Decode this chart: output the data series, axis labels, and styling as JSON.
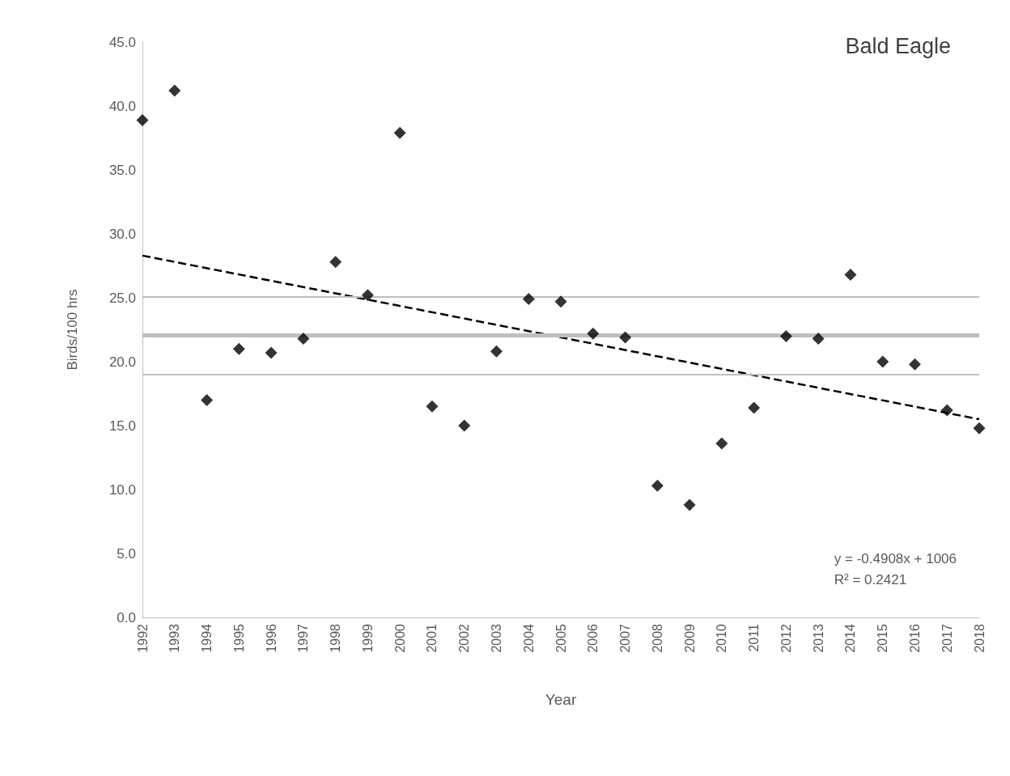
{
  "chart_data": {
    "type": "scatter",
    "title": "Bald Eagle",
    "xlabel": "Year",
    "ylabel": "Birds/100 hrs",
    "x": [
      1992,
      1993,
      1994,
      1995,
      1996,
      1997,
      1998,
      1999,
      2000,
      2001,
      2002,
      2003,
      2004,
      2005,
      2006,
      2007,
      2008,
      2009,
      2010,
      2011,
      2012,
      2013,
      2014,
      2015,
      2016,
      2017,
      2018
    ],
    "series": [
      {
        "color": "#000000",
        "marker": "diamond",
        "values": [
          38.9,
          41.2,
          17.0,
          21.0,
          20.7,
          21.8,
          27.8,
          25.2,
          37.9,
          16.5,
          15.0,
          20.8,
          24.9,
          24.7,
          22.2,
          21.9,
          10.3,
          8.8,
          13.6,
          16.4,
          22.0,
          21.8,
          26.8,
          20.0,
          19.8,
          16.2,
          14.8
        ]
      },
      {
        "type": "line",
        "color": "#000000",
        "marker": "none",
        "line_style": "dashed",
        "x": [
          1992,
          2018
        ],
        "values": [
          28.3,
          15.5
        ]
      }
    ],
    "xlim": [
      1992,
      2018
    ],
    "xticks": [
      1992,
      1993,
      1994,
      1995,
      1996,
      1997,
      1998,
      1999,
      2000,
      2001,
      2002,
      2003,
      2004,
      2005,
      2006,
      2007,
      2008,
      2009,
      2010,
      2011,
      2012,
      2013,
      2014,
      2015,
      2016,
      2017,
      2018
    ],
    "ylim": [
      0,
      45
    ],
    "yticks": [
      {
        "value": 0,
        "label": "0.0"
      },
      {
        "value": 5,
        "label": "5.0"
      },
      {
        "value": 10,
        "label": "10.0"
      },
      {
        "value": 15,
        "label": "15.0"
      },
      {
        "value": 20,
        "label": "20.0"
      },
      {
        "value": 25,
        "label": "25.0"
      },
      {
        "value": 30,
        "label": "30.0"
      },
      {
        "value": 35,
        "label": "35.0"
      },
      {
        "value": 40,
        "label": "40.0"
      },
      {
        "value": 45,
        "label": "45.0"
      }
    ],
    "ref_lines": [
      {
        "axis": "y",
        "value": 25.1,
        "color": "#bfbfbf"
      },
      {
        "axis": "y",
        "value": 22.1,
        "color": "#bfbfbf"
      },
      {
        "axis": "y",
        "value": 19.0,
        "color": "#bfbfbf"
      }
    ],
    "annotations": [
      "y = -0.4908x + 1006",
      "R² = 0.2421"
    ],
    "grid": false
  }
}
